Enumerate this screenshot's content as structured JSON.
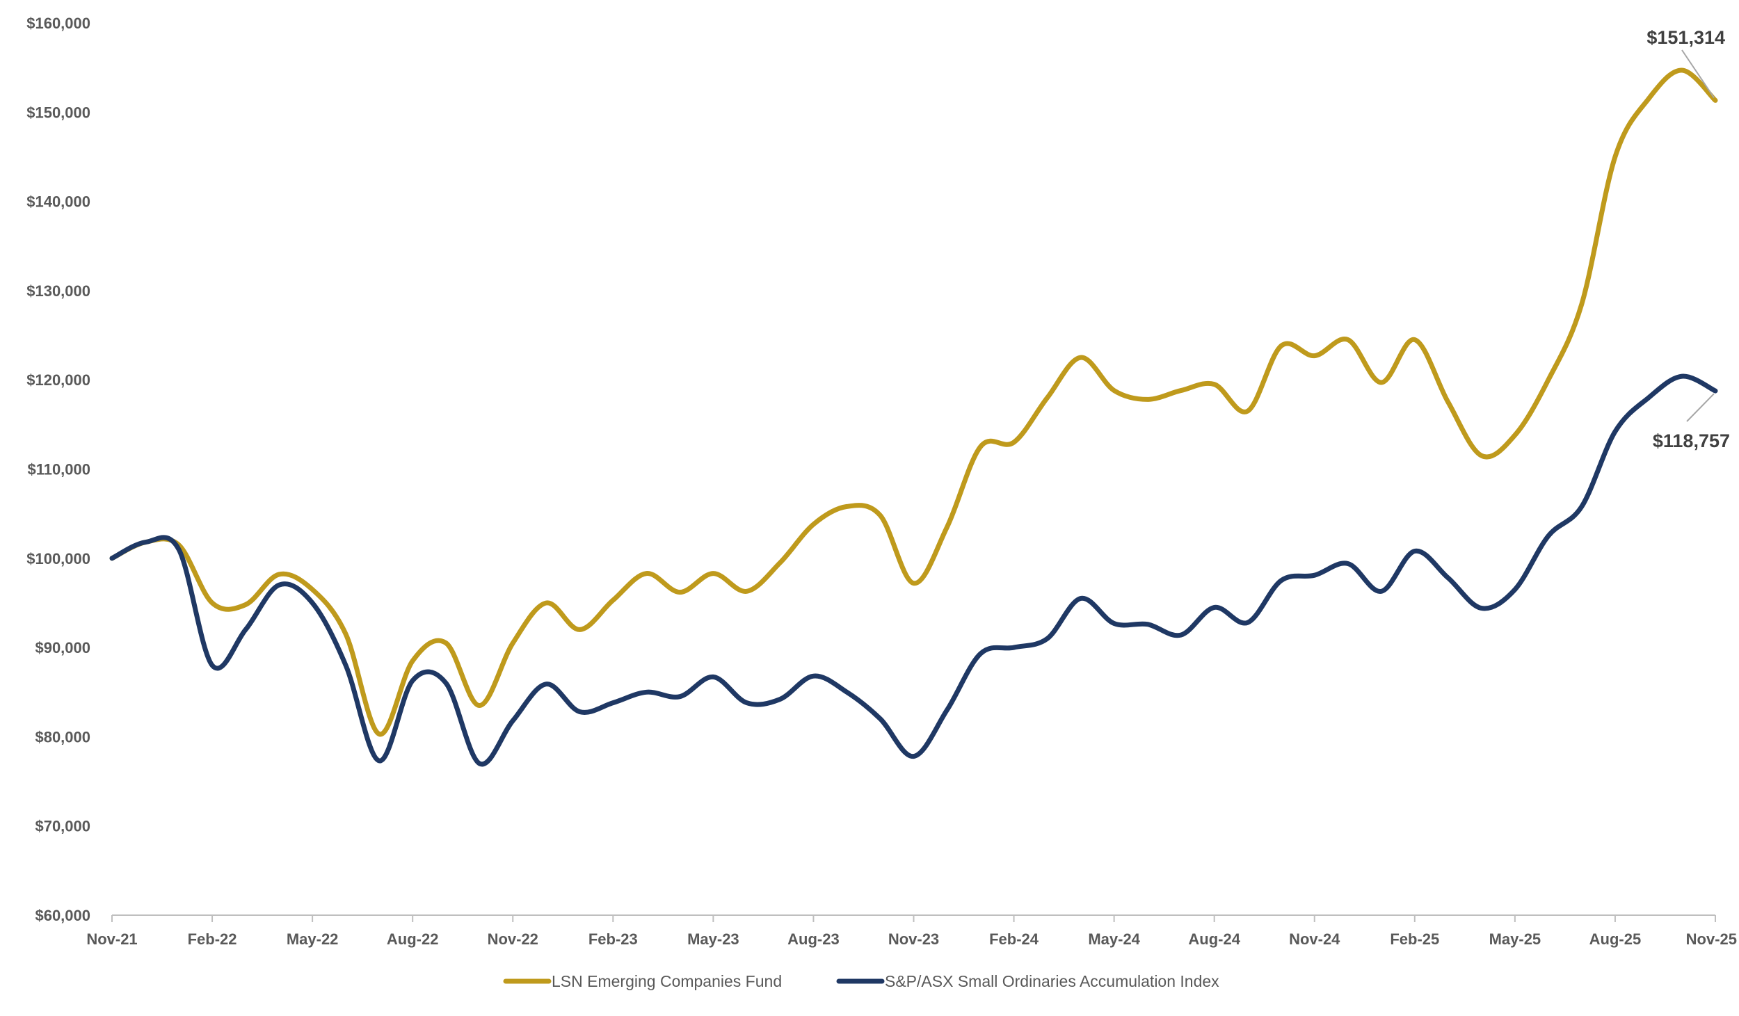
{
  "chart_data": {
    "type": "line",
    "x": [
      "Nov-21",
      "Dec-21",
      "Jan-22",
      "Feb-22",
      "Mar-22",
      "Apr-22",
      "May-22",
      "Jun-22",
      "Jul-22",
      "Aug-22",
      "Sep-22",
      "Oct-22",
      "Nov-22",
      "Dec-22",
      "Jan-23",
      "Feb-23",
      "Mar-23",
      "Apr-23",
      "May-23",
      "Jun-23",
      "Jul-23",
      "Aug-23",
      "Sep-23",
      "Oct-23",
      "Nov-23",
      "Dec-23",
      "Jan-24",
      "Feb-24",
      "Mar-24",
      "Apr-24",
      "May-24",
      "Jun-24",
      "Jul-24",
      "Aug-24",
      "Sep-24",
      "Oct-24",
      "Nov-24",
      "Dec-24",
      "Jan-25",
      "Feb-25",
      "Mar-25",
      "Apr-25",
      "May-25",
      "Jun-25",
      "Jul-25",
      "Aug-25",
      "Sep-25",
      "Oct-25",
      "Nov-25"
    ],
    "x_tick_labels": [
      "Nov-21",
      "Feb-22",
      "May-22",
      "Aug-22",
      "Nov-22",
      "Feb-23",
      "May-23",
      "Aug-23",
      "Nov-23",
      "Feb-24",
      "May-24",
      "Aug-24",
      "Nov-24",
      "Feb-25",
      "May-25",
      "Aug-25",
      "Nov-25"
    ],
    "y_tick_labels": [
      "$60,000",
      "$70,000",
      "$80,000",
      "$90,000",
      "$100,000",
      "$110,000",
      "$120,000",
      "$130,000",
      "$140,000",
      "$150,000",
      "$160,000"
    ],
    "ylim": [
      60000,
      160000
    ],
    "series": [
      {
        "name": "LSN Emerging Companies Fund",
        "color": "#BF9A1C",
        "values": [
          100000,
          101800,
          101500,
          95000,
          94800,
          98200,
          96500,
          91500,
          80300,
          88500,
          90500,
          83500,
          90500,
          95000,
          92000,
          95300,
          98300,
          96200,
          98300,
          96300,
          99500,
          103800,
          105800,
          104800,
          97200,
          103500,
          112500,
          113000,
          118000,
          122500,
          118800,
          117800,
          118800,
          119500,
          116500,
          123800,
          122700,
          124500,
          119700,
          124500,
          117500,
          111500,
          113800,
          120000,
          128500,
          145000,
          151500,
          154700,
          151314
        ]
      },
      {
        "name": "S&P/ASX Small Ordinaries Accumulation Index",
        "color": "#1F3864",
        "values": [
          100000,
          101800,
          101000,
          88000,
          92000,
          97000,
          95000,
          88000,
          77300,
          86300,
          86000,
          77000,
          81800,
          85900,
          82800,
          83800,
          85000,
          84500,
          86700,
          83800,
          84200,
          86800,
          85000,
          82000,
          77800,
          83000,
          89300,
          90000,
          91000,
          95500,
          92700,
          92600,
          91400,
          94500,
          92800,
          97500,
          98100,
          99400,
          96300,
          100800,
          97800,
          94400,
          96500,
          102500,
          105800,
          114200,
          118000,
          120400,
          118757
        ]
      }
    ],
    "legend": {
      "position": "bottom",
      "entries": [
        "LSN Emerging Companies Fund",
        "S&P/ASX Small Ordinaries Accumulation Index"
      ]
    },
    "annotations": [
      "$151,314",
      "$118,757"
    ],
    "grid": false
  }
}
